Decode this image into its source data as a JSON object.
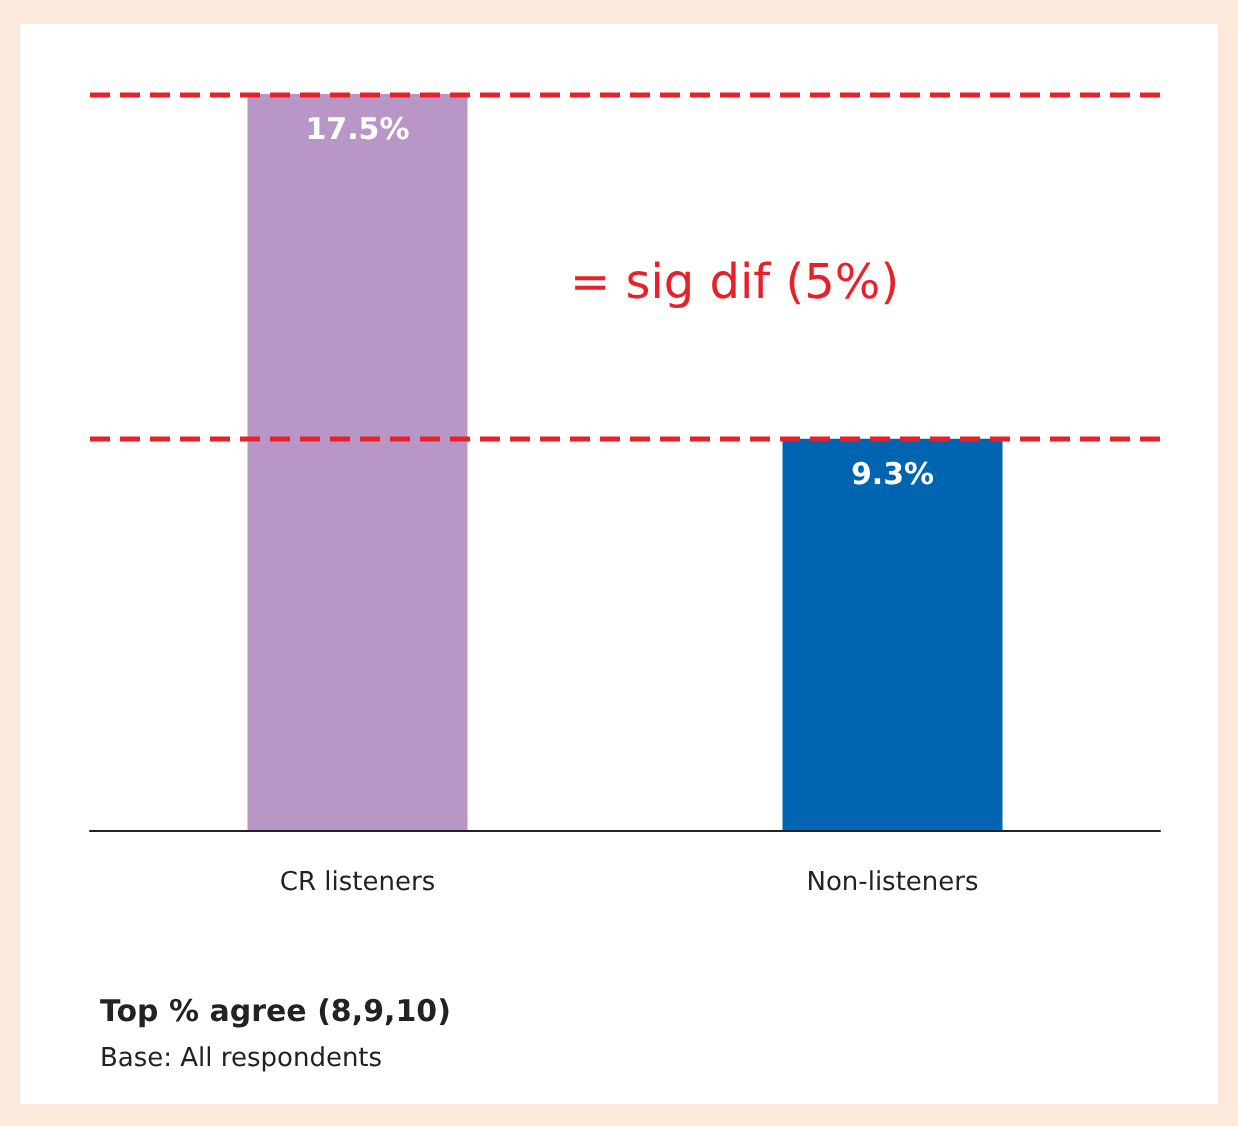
{
  "chart_data": {
    "type": "bar",
    "categories": [
      "CR listeners",
      "Non-listeners"
    ],
    "series": [
      {
        "colors": [
          "#b896c6",
          "#0064b0"
        ],
        "values": [
          17.5,
          9.3
        ],
        "value_labels": [
          "17.5%",
          "9.3%"
        ]
      }
    ],
    "ref_lines": [
      {
        "axis": "y",
        "value": 17.5,
        "color": "#e8202a",
        "line_style": "dashed"
      },
      {
        "axis": "y",
        "value": 9.3,
        "color": "#e8202a",
        "line_style": "dashed"
      }
    ],
    "annotations": [
      "= sig dif (5%)",
      "Top % agree (8,9,10)",
      "Base: All respondents"
    ]
  }
}
